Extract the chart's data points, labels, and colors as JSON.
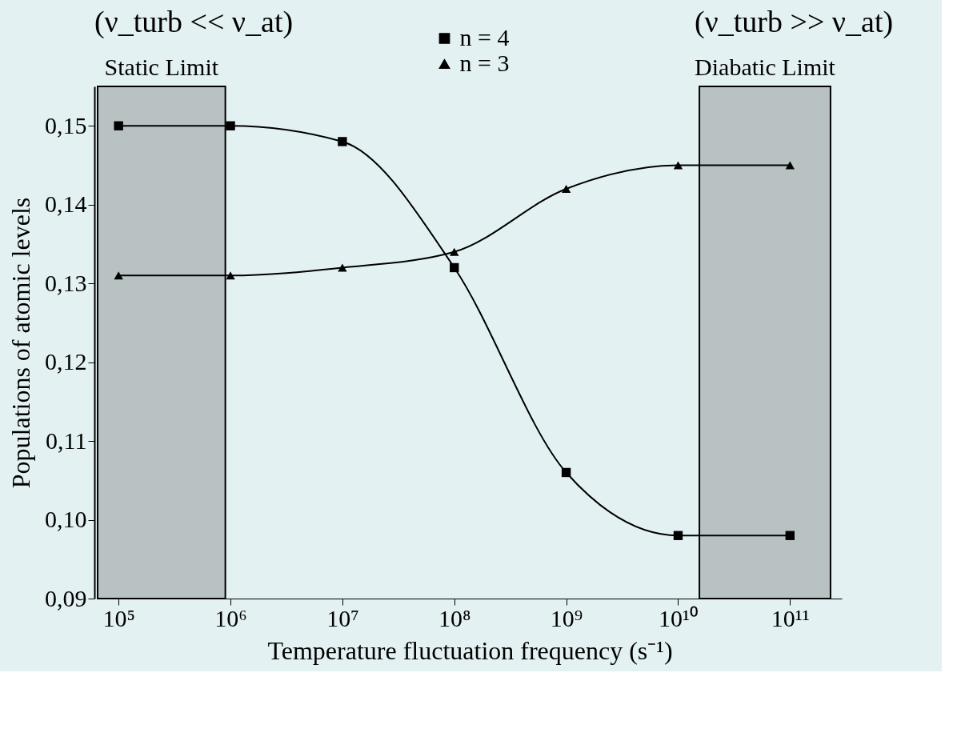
{
  "chart_data": {
    "type": "line",
    "xlabel": "Temperature fluctuation frequency (s⁻¹)",
    "ylabel": "Populations of atomic levels",
    "x": [
      100000,
      1000000,
      10000000,
      100000000,
      1000000000,
      10000000000,
      100000000000
    ],
    "series": [
      {
        "name": "n = 4",
        "color": "#000000",
        "marker": "square",
        "values": [
          0.15,
          0.15,
          0.148,
          0.132,
          0.106,
          0.098,
          0.098
        ]
      },
      {
        "name": "n = 3",
        "color": "#000000",
        "marker": "triangle",
        "values": [
          0.131,
          0.131,
          0.132,
          0.134,
          0.142,
          0.145,
          0.145
        ]
      }
    ],
    "log": "x",
    "xlim": [
      65000,
      290000000000
    ],
    "xticks": [
      {
        "value": 100000,
        "label": "10⁵"
      },
      {
        "value": 1000000,
        "label": "10⁶"
      },
      {
        "value": 10000000,
        "label": "10⁷"
      },
      {
        "value": 100000000,
        "label": "10⁸"
      },
      {
        "value": 1000000000,
        "label": "10⁹"
      },
      {
        "value": 10000000000,
        "label": "10¹⁰"
      },
      {
        "value": 100000000000,
        "label": "10¹¹"
      }
    ],
    "ylim": [
      0.09,
      0.155
    ],
    "yticks": [
      {
        "value": 0.09,
        "label": "0,09"
      },
      {
        "value": 0.1,
        "label": "0,10"
      },
      {
        "value": 0.11,
        "label": "0,11"
      },
      {
        "value": 0.12,
        "label": "0,12"
      },
      {
        "value": 0.13,
        "label": "0,13"
      },
      {
        "value": 0.14,
        "label": "0,14"
      },
      {
        "value": 0.15,
        "label": "0,15"
      }
    ],
    "bands": [
      {
        "axis": "x",
        "from": 65000,
        "to": 900000,
        "label": "Static Limit",
        "color": "#555555"
      },
      {
        "axis": "x",
        "from": 15500000000,
        "to": 230000000000,
        "label": "Diabatic Limit",
        "color": "#555555"
      }
    ],
    "annotations": [
      "(ν_turb << ν_at)",
      "(ν_turb >> ν_at)"
    ],
    "grid": false,
    "legend": "top",
    "line_style": "solid"
  }
}
